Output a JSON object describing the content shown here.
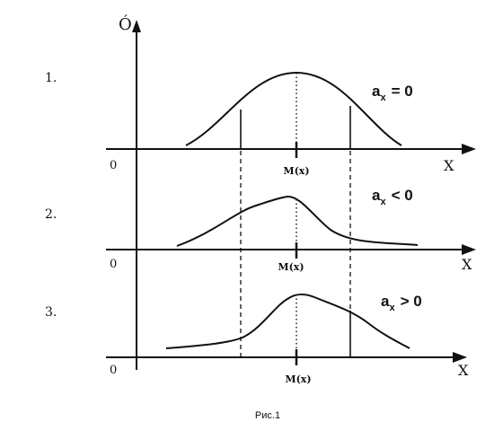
{
  "figure": {
    "y_axis_label": "Ó",
    "caption": "Рис.1",
    "panels": [
      {
        "number": "1.",
        "origin_label": "0",
        "x_axis_label": "X",
        "mean_label": "M(x)",
        "asym_label": {
          "sub": "x",
          "rel": "= 0",
          "base": "a"
        },
        "shape": "symmetric"
      },
      {
        "number": "2.",
        "origin_label": "0",
        "x_axis_label": "X",
        "mean_label": "M(x)",
        "asym_label": {
          "sub": "x",
          "rel": "< 0",
          "base": "a"
        },
        "shape": "peak-left"
      },
      {
        "number": "3.",
        "origin_label": "0",
        "x_axis_label": "X",
        "mean_label": "M(x)",
        "asym_label": {
          "sub": "x",
          "rel": "> 0",
          "base": "a"
        },
        "shape": "peak-right"
      }
    ]
  }
}
